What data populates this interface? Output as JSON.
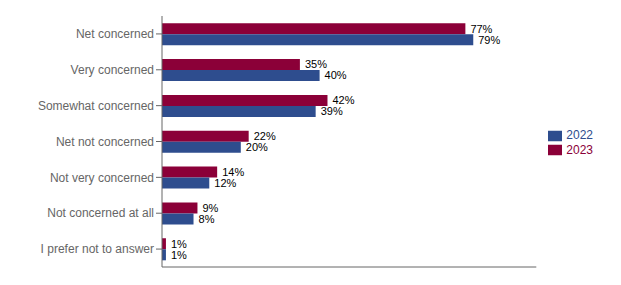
{
  "chart_data": {
    "type": "bar",
    "orientation": "horizontal",
    "categories": [
      "Net concerned",
      "Very concerned",
      "Somewhat concerned",
      "Net not concerned",
      "Not very concerned",
      "Not concerned at all",
      "I prefer not to answer"
    ],
    "series": [
      {
        "name": "2023",
        "color": "#8B0038",
        "values": [
          77,
          35,
          42,
          22,
          14,
          9,
          1
        ],
        "value_labels": [
          "77%",
          "35%",
          "42%",
          "22%",
          "14%",
          "9%",
          "1%"
        ]
      },
      {
        "name": "2022",
        "color": "#2E4D8E",
        "values": [
          79,
          40,
          39,
          20,
          12,
          8,
          1
        ],
        "value_labels": [
          "79%",
          "40%",
          "39%",
          "20%",
          "12%",
          "8%",
          "1%"
        ]
      }
    ],
    "xlim": [
      0,
      95
    ],
    "data_labels": true,
    "tick_labels": "y",
    "legend": "right",
    "grid": false
  }
}
